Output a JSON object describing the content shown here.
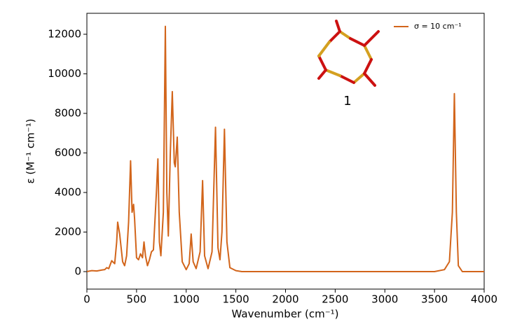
{
  "chart_data": {
    "type": "line",
    "xlabel": "Wavenumber (cm⁻¹)",
    "ylabel": "ε (M⁻¹ cm⁻¹)",
    "annotation": "1",
    "xlim": [
      0,
      4000
    ],
    "xticks": [
      0,
      500,
      1000,
      1500,
      2000,
      2500,
      3000,
      3500,
      4000
    ],
    "ylim": [
      -885,
      13060
    ],
    "yticks": [
      0,
      2000,
      4000,
      6000,
      8000,
      10000,
      12000
    ],
    "legend": "upper right",
    "x": [
      0,
      50,
      100,
      150,
      180,
      200,
      220,
      250,
      280,
      300,
      310,
      330,
      360,
      380,
      400,
      420,
      440,
      455,
      470,
      480,
      500,
      520,
      540,
      560,
      575,
      590,
      610,
      630,
      650,
      670,
      700,
      715,
      730,
      745,
      770,
      790,
      805,
      820,
      840,
      860,
      880,
      890,
      910,
      930,
      960,
      1000,
      1030,
      1050,
      1070,
      1100,
      1140,
      1165,
      1185,
      1220,
      1260,
      1295,
      1320,
      1340,
      1360,
      1385,
      1410,
      1440,
      1500,
      1560,
      2000,
      3000,
      3500,
      3600,
      3650,
      3680,
      3700,
      3720,
      3740,
      3780,
      4000
    ],
    "series": [
      {
        "name": "σ = 10 cm⁻¹",
        "color": "#d2651b",
        "values": [
          0,
          50,
          30,
          80,
          100,
          200,
          150,
          550,
          400,
          1500,
          2500,
          1900,
          500,
          300,
          800,
          2500,
          5600,
          3000,
          3400,
          2700,
          700,
          600,
          900,
          700,
          1500,
          800,
          300,
          600,
          1000,
          1100,
          4000,
          5700,
          1500,
          800,
          3000,
          12400,
          4000,
          1800,
          6000,
          9100,
          5500,
          5300,
          6800,
          3000,
          500,
          100,
          400,
          1900,
          500,
          150,
          1000,
          4600,
          800,
          150,
          1000,
          7300,
          1200,
          600,
          2000,
          7200,
          1500,
          200,
          50,
          0,
          0,
          0,
          0,
          100,
          500,
          3000,
          9000,
          3000,
          300,
          0,
          0
        ]
      }
    ]
  }
}
